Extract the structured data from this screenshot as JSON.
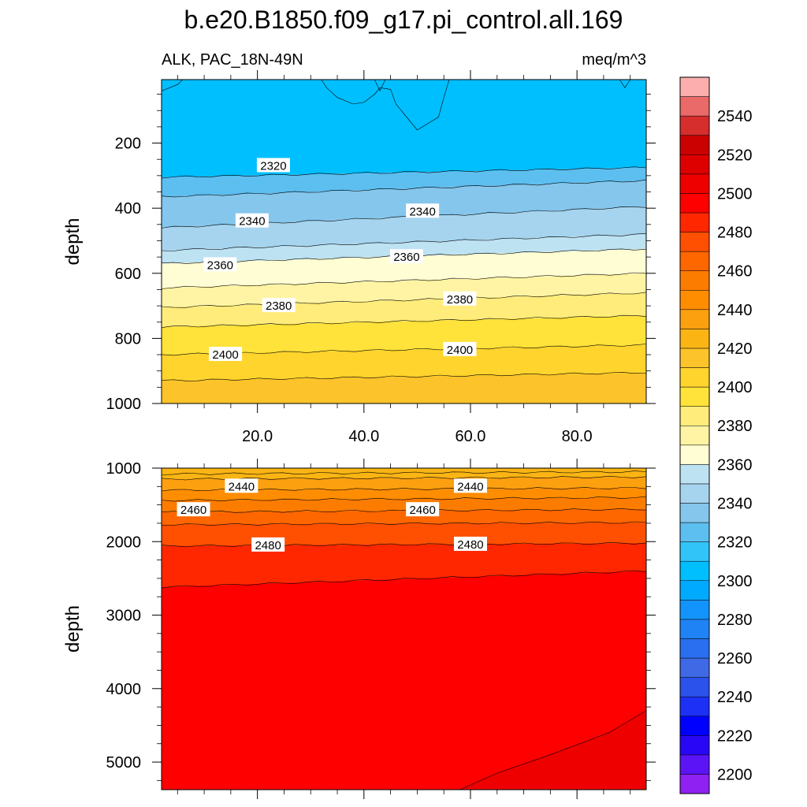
{
  "title": "b.e20.B1850.f09_g17.pi_control.all.169",
  "subtitle_left": "ALK, PAC_18N-49N",
  "subtitle_right": "meq/m^3",
  "chart_data": [
    {
      "type": "heatmap",
      "panel": "upper",
      "xlabel": "",
      "ylabel": "depth",
      "xlim": [
        2,
        93
      ],
      "ylim": [
        1000,
        5
      ],
      "xticks": [
        20,
        40,
        60,
        80
      ],
      "xtick_labels": [
        "20.0",
        "40.0",
        "60.0",
        "80.0"
      ],
      "yticks": [
        200,
        400,
        600,
        800,
        1000
      ],
      "ytick_labels": [
        "200",
        "400",
        "600",
        "800",
        "1000"
      ],
      "contour_levels": [
        2310,
        2320,
        2330,
        2340,
        2350,
        2360,
        2370,
        2380,
        2390,
        2400,
        2410
      ],
      "contour_lines": [
        {
          "level": 2320,
          "depth_at_xmin": 305,
          "depth_at_xmax": 275
        },
        {
          "level": 2330,
          "depth_at_xmin": 365,
          "depth_at_xmax": 315
        },
        {
          "level": 2340,
          "depth_at_xmin": 460,
          "depth_at_xmax": 395
        },
        {
          "level": 2350,
          "depth_at_xmin": 530,
          "depth_at_xmax": 480
        },
        {
          "level": 2360,
          "depth_at_xmin": 570,
          "depth_at_xmax": 525
        },
        {
          "level": 2370,
          "depth_at_xmin": 645,
          "depth_at_xmax": 600
        },
        {
          "level": 2380,
          "depth_at_xmin": 705,
          "depth_at_xmax": 660
        },
        {
          "level": 2390,
          "depth_at_xmin": 765,
          "depth_at_xmax": 730
        },
        {
          "level": 2400,
          "depth_at_xmin": 850,
          "depth_at_xmax": 820
        },
        {
          "level": 2410,
          "depth_at_xmin": 930,
          "depth_at_xmax": 905
        }
      ],
      "labels": [
        {
          "text": "2320",
          "x": 23,
          "depth": 270
        },
        {
          "text": "2340",
          "x": 19,
          "depth": 440
        },
        {
          "text": "2340",
          "x": 51,
          "depth": 410
        },
        {
          "text": "2360",
          "x": 13,
          "depth": 575
        },
        {
          "text": "2360",
          "x": 48,
          "depth": 550
        },
        {
          "text": "2380",
          "x": 24,
          "depth": 700
        },
        {
          "text": "2380",
          "x": 58,
          "depth": 680
        },
        {
          "text": "2400",
          "x": 14,
          "depth": 850
        },
        {
          "text": "2400",
          "x": 58,
          "depth": 835
        }
      ]
    },
    {
      "type": "heatmap",
      "panel": "lower",
      "xlabel": "",
      "ylabel": "depth",
      "xlim": [
        2,
        93
      ],
      "ylim": [
        5375,
        1000
      ],
      "yticks": [
        1000,
        2000,
        3000,
        4000,
        5000
      ],
      "ytick_labels": [
        "1000",
        "2000",
        "3000",
        "4000",
        "5000"
      ],
      "contour_levels": [
        2420,
        2430,
        2440,
        2450,
        2460,
        2470,
        2480,
        2490,
        2500
      ],
      "contour_lines": [
        {
          "level": 2420,
          "depth_at_xmin": 1080,
          "depth_at_xmax": 1050
        },
        {
          "level": 2430,
          "depth_at_xmin": 1150,
          "depth_at_xmax": 1120
        },
        {
          "level": 2440,
          "depth_at_xmin": 1300,
          "depth_at_xmax": 1270
        },
        {
          "level": 2450,
          "depth_at_xmin": 1440,
          "depth_at_xmax": 1400
        },
        {
          "level": 2460,
          "depth_at_xmin": 1600,
          "depth_at_xmax": 1560
        },
        {
          "level": 2470,
          "depth_at_xmin": 1770,
          "depth_at_xmax": 1740
        },
        {
          "level": 2480,
          "depth_at_xmin": 2060,
          "depth_at_xmax": 2020
        },
        {
          "level": 2490,
          "depth_at_xmin": 2620,
          "depth_at_xmax": 2400
        }
      ],
      "deep_region": {
        "level": 2500,
        "points": [
          [
            58,
            5375
          ],
          [
            65,
            5150
          ],
          [
            75,
            4900
          ],
          [
            86,
            4600
          ],
          [
            93,
            4300
          ]
        ]
      },
      "labels": [
        {
          "text": "2440",
          "x": 17,
          "depth": 1250
        },
        {
          "text": "2440",
          "x": 60,
          "depth": 1250
        },
        {
          "text": "2460",
          "x": 8,
          "depth": 1570
        },
        {
          "text": "2460",
          "x": 51,
          "depth": 1570
        },
        {
          "text": "2480",
          "x": 22,
          "depth": 2050
        },
        {
          "text": "2480",
          "x": 60,
          "depth": 2040
        }
      ]
    },
    {
      "type": "colorbar",
      "bins": [
        {
          "color": "#8f21f2"
        },
        {
          "color": "#5a14f5"
        },
        {
          "color": "#2a06f7"
        },
        {
          "color": "#0000ff"
        },
        {
          "color": "#1d30f5"
        },
        {
          "color": "#2c52ec"
        },
        {
          "color": "#3f69e5"
        },
        {
          "color": "#2a6ff0"
        },
        {
          "color": "#1f83f5"
        },
        {
          "color": "#1394fc"
        },
        {
          "color": "#00aaff"
        },
        {
          "color": "#00bfff"
        },
        {
          "color": "#30c4f8"
        },
        {
          "color": "#5dbef0"
        },
        {
          "color": "#85c6ec"
        },
        {
          "color": "#a6d4ee"
        },
        {
          "color": "#bde2f2"
        },
        {
          "color": "#fffdd3"
        },
        {
          "color": "#fff4a3"
        },
        {
          "color": "#ffec7a"
        },
        {
          "color": "#ffe23a"
        },
        {
          "color": "#ffd42d"
        },
        {
          "color": "#fcc42a"
        },
        {
          "color": "#fab514"
        },
        {
          "color": "#fca010"
        },
        {
          "color": "#fe8d02"
        },
        {
          "color": "#fc7c00"
        },
        {
          "color": "#fe6600"
        },
        {
          "color": "#fe5000"
        },
        {
          "color": "#ff2700"
        },
        {
          "color": "#fe0000"
        },
        {
          "color": "#ee0000"
        },
        {
          "color": "#de0000"
        },
        {
          "color": "#cb0000"
        },
        {
          "color": "#d62d2d"
        },
        {
          "color": "#ea6a6a"
        },
        {
          "color": "#fcaeae"
        }
      ],
      "tick_labels": [
        "2200",
        "2220",
        "2240",
        "2260",
        "2280",
        "2300",
        "2320",
        "2340",
        "2360",
        "2380",
        "2400",
        "2420",
        "2440",
        "2460",
        "2480",
        "2500",
        "2520",
        "2540"
      ]
    }
  ],
  "fill_colors": {
    "2300": "#00bfff",
    "2310": "#30c4f8",
    "2320": "#5dbef0",
    "2330": "#85c6ec",
    "2340": "#a6d4ee",
    "2350": "#bde2f2",
    "2360": "#fffdd3",
    "2370": "#fff4a3",
    "2380": "#ffec7a",
    "2390": "#ffe23a",
    "2400": "#ffd42d",
    "2410": "#fcc42a",
    "2420": "#fab514",
    "2430": "#fca010",
    "2440": "#fe8d02",
    "2450": "#fc7c00",
    "2460": "#fe6600",
    "2470": "#fe5000",
    "2480": "#ff2700",
    "2490": "#fe0000",
    "2500": "#ee0000"
  }
}
